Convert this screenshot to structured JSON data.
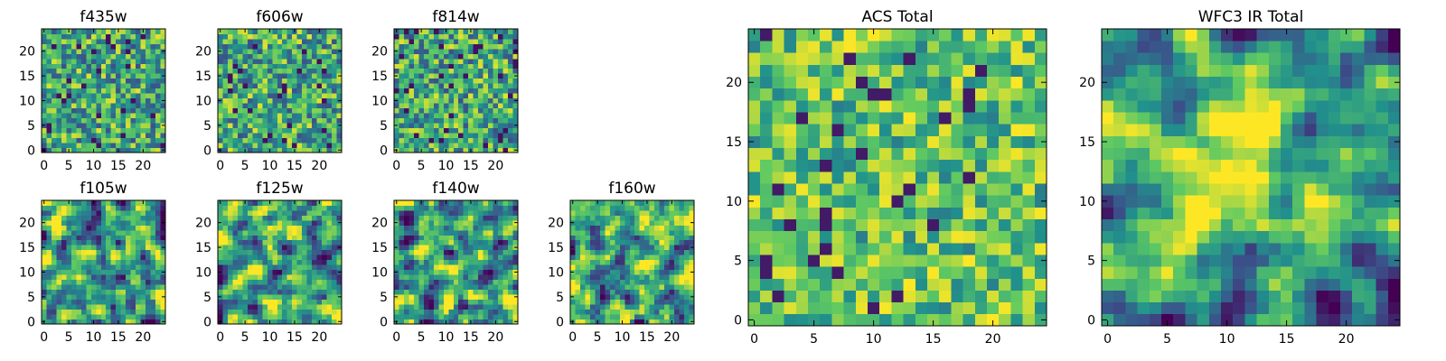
{
  "chart_data": {
    "type": "heatmap",
    "colormap": "viridis",
    "colormap_colors": [
      "#440154",
      "#3b528b",
      "#21918c",
      "#5ec962",
      "#fde725"
    ],
    "grid_size": [
      25,
      25
    ],
    "panels": [
      {
        "title": "f435w",
        "xlim": [
          0,
          24
        ],
        "ylim": [
          0,
          24
        ],
        "xticks": [
          0,
          5,
          10,
          15,
          20
        ],
        "yticks": [
          0,
          5,
          10,
          15,
          20
        ],
        "texture": "fine-noise"
      },
      {
        "title": "f606w",
        "xlim": [
          0,
          24
        ],
        "ylim": [
          0,
          24
        ],
        "xticks": [
          0,
          5,
          10,
          15,
          20
        ],
        "yticks": [
          0,
          5,
          10,
          15,
          20
        ],
        "texture": "fine-noise"
      },
      {
        "title": "f814w",
        "xlim": [
          0,
          24
        ],
        "ylim": [
          0,
          24
        ],
        "xticks": [
          0,
          5,
          10,
          15,
          20
        ],
        "yticks": [
          0,
          5,
          10,
          15,
          20
        ],
        "texture": "fine-noise"
      },
      {
        "title": "f105w",
        "xlim": [
          0,
          24
        ],
        "ylim": [
          0,
          24
        ],
        "xticks": [
          0,
          5,
          10,
          15,
          20
        ],
        "yticks": [
          0,
          5,
          10,
          15,
          20
        ],
        "texture": "smooth-noise"
      },
      {
        "title": "f125w",
        "xlim": [
          0,
          24
        ],
        "ylim": [
          0,
          24
        ],
        "xticks": [
          0,
          5,
          10,
          15,
          20
        ],
        "yticks": [
          0,
          5,
          10,
          15,
          20
        ],
        "texture": "smooth-noise"
      },
      {
        "title": "f140w",
        "xlim": [
          0,
          24
        ],
        "ylim": [
          0,
          24
        ],
        "xticks": [
          0,
          5,
          10,
          15,
          20
        ],
        "yticks": [
          0,
          5,
          10,
          15,
          20
        ],
        "texture": "smooth-noise"
      },
      {
        "title": "f160w",
        "xlim": [
          0,
          24
        ],
        "ylim": [
          0,
          24
        ],
        "xticks": [
          0,
          5,
          10,
          15,
          20
        ],
        "yticks": [
          0,
          5,
          10,
          15,
          20
        ],
        "texture": "smooth-noise"
      },
      {
        "title": "ACS Total",
        "xlim": [
          0,
          24
        ],
        "ylim": [
          0,
          24
        ],
        "xticks": [
          0,
          5,
          10,
          15,
          20
        ],
        "yticks": [
          0,
          5,
          10,
          15,
          20
        ],
        "texture": "bright-noise"
      },
      {
        "title": "WFC3 IR Total",
        "xlim": [
          0,
          24
        ],
        "ylim": [
          0,
          24
        ],
        "xticks": [
          0,
          5,
          10,
          15,
          20
        ],
        "yticks": [
          0,
          5,
          10,
          15,
          20
        ],
        "texture": "central-blob"
      }
    ]
  }
}
